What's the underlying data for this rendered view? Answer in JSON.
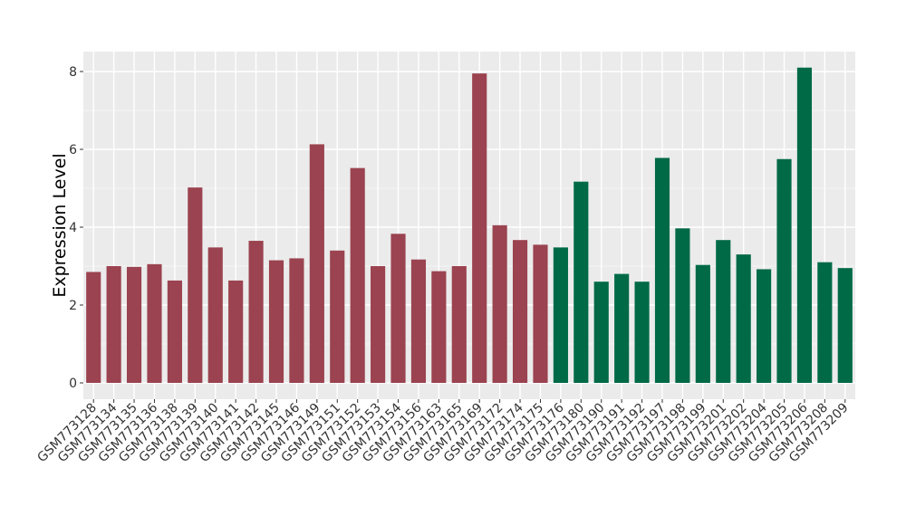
{
  "chart_data": {
    "type": "bar",
    "ylabel": "Expression Level",
    "xlabel": "",
    "ylim": [
      0,
      8.5
    ],
    "yticks": [
      "0",
      "2",
      "4",
      "6",
      "8"
    ],
    "grid": true,
    "group_colors": [
      "#9b4350",
      "#006a46"
    ],
    "categories": [
      "GSM773128",
      "GSM773134",
      "GSM773135",
      "GSM773136",
      "GSM773138",
      "GSM773139",
      "GSM773140",
      "GSM773141",
      "GSM773142",
      "GSM773145",
      "GSM773146",
      "GSM773149",
      "GSM773151",
      "GSM773152",
      "GSM773153",
      "GSM773154",
      "GSM773156",
      "GSM773163",
      "GSM773165",
      "GSM773169",
      "GSM773172",
      "GSM773174",
      "GSM773175",
      "GSM773176",
      "GSM773180",
      "GSM773190",
      "GSM773191",
      "GSM773192",
      "GSM773197",
      "GSM773198",
      "GSM773199",
      "GSM773201",
      "GSM773202",
      "GSM773204",
      "GSM773205",
      "GSM773206",
      "GSM773208",
      "GSM773209"
    ],
    "values": [
      2.85,
      3.0,
      2.98,
      3.05,
      2.63,
      5.02,
      3.48,
      2.63,
      3.65,
      3.15,
      3.2,
      6.13,
      3.4,
      5.52,
      3.0,
      3.83,
      3.17,
      2.87,
      3.0,
      7.95,
      4.05,
      3.67,
      3.55,
      3.48,
      5.17,
      2.6,
      2.8,
      2.6,
      5.78,
      3.97,
      3.03,
      3.67,
      3.3,
      2.92,
      5.75,
      8.1,
      3.1,
      2.95
    ],
    "groups": [
      0,
      0,
      0,
      0,
      0,
      0,
      0,
      0,
      0,
      0,
      0,
      0,
      0,
      0,
      0,
      0,
      0,
      0,
      0,
      0,
      0,
      0,
      0,
      1,
      1,
      1,
      1,
      1,
      1,
      1,
      1,
      1,
      1,
      1,
      1,
      1,
      1,
      1
    ]
  }
}
